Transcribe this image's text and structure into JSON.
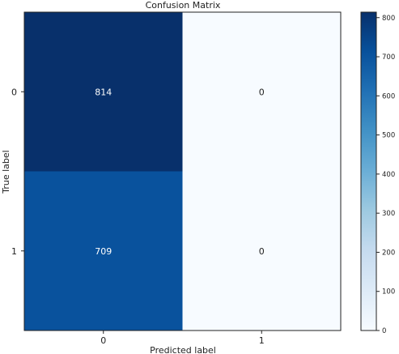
{
  "chart_data": {
    "type": "heatmap",
    "title": "Confusion Matrix",
    "xlabel": "Predicted label",
    "ylabel": "True label",
    "x_tick_labels": [
      "0",
      "1"
    ],
    "y_tick_labels": [
      "0",
      "1"
    ],
    "matrix": [
      [
        814,
        0
      ],
      [
        709,
        0
      ]
    ],
    "matrix_labels": [
      [
        "814",
        "0"
      ],
      [
        "709",
        "0"
      ]
    ],
    "colormap": "Blues",
    "colorbar": {
      "range": [
        0,
        814
      ],
      "ticks": [
        0,
        100,
        200,
        300,
        400,
        500,
        600,
        700,
        800
      ],
      "tick_labels": [
        "0",
        "100",
        "200",
        "300",
        "400",
        "500",
        "600",
        "700",
        "800"
      ]
    },
    "grid": false,
    "legend": "colorbar-right"
  }
}
